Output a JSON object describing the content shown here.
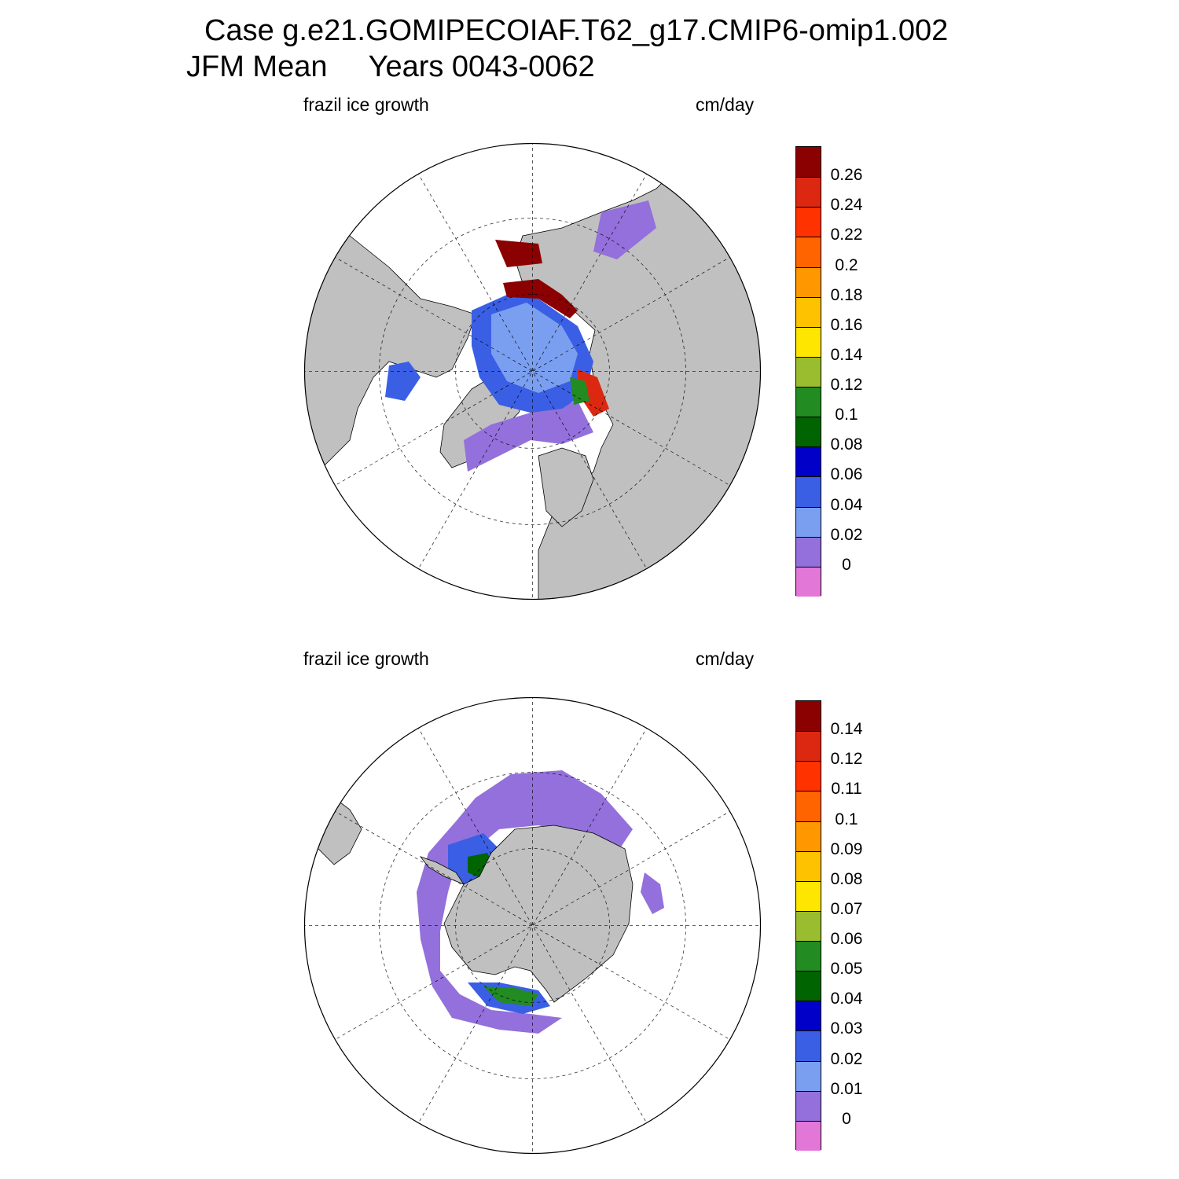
{
  "header": {
    "line1": "Case g.e21.GOMIPECOIAF.T62_g17.CMIP6-omip1.002",
    "line2": "JFM Mean     Years 0043-0062"
  },
  "colors": {
    "land": "#c0c0c0",
    "ocean_no_data": "#ffffff",
    "palette": [
      "#e377d8",
      "#9370db",
      "#7b9ff0",
      "#3a5fe5",
      "#0000c8",
      "#006400",
      "#228b22",
      "#9abd30",
      "#ffe600",
      "#ffc200",
      "#ff9800",
      "#ff6400",
      "#ff3200",
      "#dc2810",
      "#8b0000"
    ]
  },
  "panels": [
    {
      "id": "north",
      "left_label": "frazil ice growth",
      "right_label": "cm/day",
      "hemisphere": "Northern Hemisphere polar stereographic",
      "colorbar": {
        "labels": [
          "0.26",
          "0.24",
          "0.22",
          "0.2",
          "0.18",
          "0.16",
          "0.14",
          "0.12",
          "0.1",
          "0.08",
          "0.06",
          "0.04",
          "0.02",
          "0"
        ]
      }
    },
    {
      "id": "south",
      "left_label": "frazil ice growth",
      "right_label": "cm/day",
      "hemisphere": "Southern Hemisphere polar stereographic",
      "colorbar": {
        "labels": [
          "0.14",
          "0.12",
          "0.11",
          "0.1",
          "0.09",
          "0.08",
          "0.07",
          "0.06",
          "0.05",
          "0.04",
          "0.03",
          "0.02",
          "0.01",
          "0"
        ]
      }
    }
  ]
}
